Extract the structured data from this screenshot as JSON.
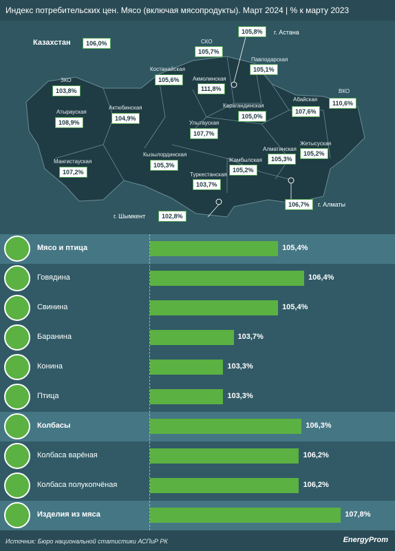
{
  "title": "Индекс потребительских цен. Мясо (включая мясопродукты). Март 2024",
  "title_sep": "|",
  "title_suffix": "% к марту 2023",
  "map": {
    "country_name": "Казахстан",
    "country_value": "106,0%",
    "regions": [
      {
        "name": "ЗКО",
        "value": "103,8%"
      },
      {
        "name": "Атырауская",
        "value": "108,9%"
      },
      {
        "name": "Мангистауская",
        "value": "107,2%"
      },
      {
        "name": "Актюбинская",
        "value": "104,9%"
      },
      {
        "name": "Костанайская",
        "value": "105,6%"
      },
      {
        "name": "СКО",
        "value": "105,7%"
      },
      {
        "name": "Акмолинская",
        "value": "111,8%"
      },
      {
        "name": "г. Астана",
        "value": "105,8%"
      },
      {
        "name": "Павлодарская",
        "value": "105,1%"
      },
      {
        "name": "Карагандинская",
        "value": "105,0%"
      },
      {
        "name": "Абайская",
        "value": "107,6%"
      },
      {
        "name": "ВКО",
        "value": "110,6%"
      },
      {
        "name": "Улытауская",
        "value": "107,7%"
      },
      {
        "name": "Кызылординская",
        "value": "105,3%"
      },
      {
        "name": "Туркестанская",
        "value": "103,7%"
      },
      {
        "name": "Жамбылская",
        "value": "105,2%"
      },
      {
        "name": "Алматинская",
        "value": "105,3%"
      },
      {
        "name": "Жетысуская",
        "value": "105,2%"
      },
      {
        "name": "г. Алматы",
        "value": "106,7%"
      },
      {
        "name": "г. Шымкент",
        "value": "102,8%"
      }
    ]
  },
  "chart_data": {
    "type": "bar",
    "orientation": "horizontal",
    "title": "Индекс потребительских цен. Мясо (включая мясопродукты). Март 2024",
    "categories": [
      "Мясо и птица",
      "Говядина",
      "Свинина",
      "Баранина",
      "Конина",
      "Птица",
      "Колбасы",
      "Колбаса варёная",
      "Колбаса полукопчёная",
      "Изделия из мяса"
    ],
    "values": [
      105.4,
      106.4,
      105.4,
      103.7,
      103.3,
      103.3,
      106.3,
      106.2,
      106.2,
      107.8
    ],
    "value_labels": [
      "105,4%",
      "106,4%",
      "105,4%",
      "103,7%",
      "103,3%",
      "103,3%",
      "106,3%",
      "106,2%",
      "106,2%",
      "107,8%"
    ],
    "bold_categories": [
      "Мясо и птица",
      "Колбасы",
      "Изделия из мяса"
    ],
    "icons": [
      "meat-and-poultry-icon",
      "cow-icon",
      "pig-icon",
      "sheep-icon",
      "horse-icon",
      "chicken-icon",
      "sausages-icon",
      "boiled-sausage-icon",
      "smoked-sausage-icon",
      "meat-products-icon"
    ],
    "colors": {
      "bar": "#5bb142",
      "background": "#2a4b55"
    }
  },
  "footer": {
    "source": "Источник: Бюро национальной статистики АСПиР РК",
    "logo": "EnergyProm"
  }
}
